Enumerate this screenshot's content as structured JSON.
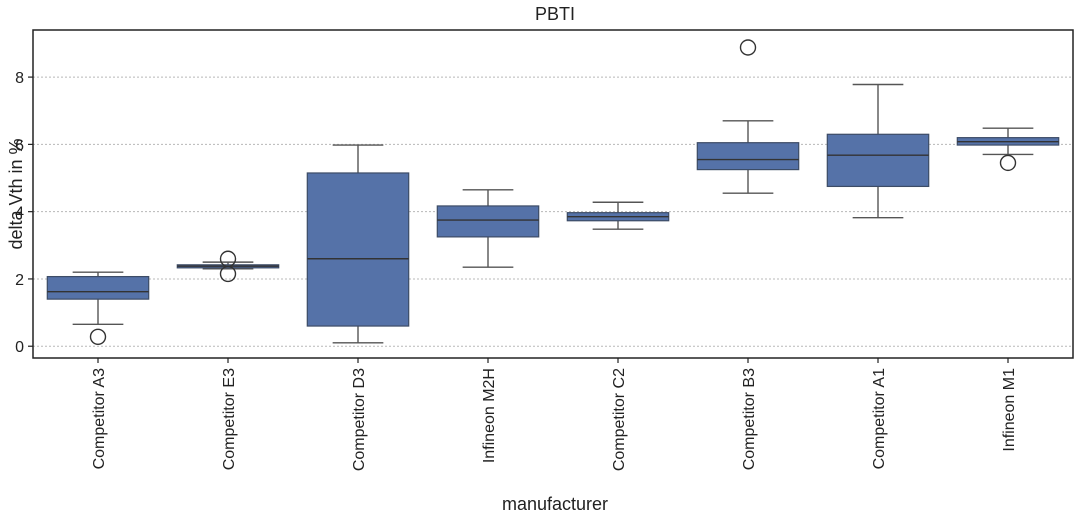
{
  "chart_data": {
    "type": "box",
    "title": "PBTI",
    "xlabel": "manufacturer",
    "ylabel": "delta Vth in %",
    "ylim": [
      -0.35,
      9.4
    ],
    "yticks": [
      0,
      2,
      4,
      6,
      8
    ],
    "grid": "horizontal-dotted",
    "box_color": "#5572a8",
    "categories": [
      "Competitor A3",
      "Competitor E3",
      "Competitor D3",
      "Infineon M2H",
      "Competitor C2",
      "Competitor B3",
      "Competitor A1",
      "Infineon M1"
    ],
    "boxes": [
      {
        "whislo": 0.65,
        "q1": 1.4,
        "med": 1.62,
        "q3": 2.07,
        "whishi": 2.2,
        "fliers": [
          0.28
        ]
      },
      {
        "whislo": 2.3,
        "q1": 2.33,
        "med": 2.38,
        "q3": 2.42,
        "whishi": 2.5,
        "fliers": [
          2.15,
          2.6
        ]
      },
      {
        "whislo": 0.1,
        "q1": 0.6,
        "med": 2.6,
        "q3": 5.15,
        "whishi": 5.98,
        "fliers": []
      },
      {
        "whislo": 2.35,
        "q1": 3.25,
        "med": 3.75,
        "q3": 4.17,
        "whishi": 4.65,
        "fliers": []
      },
      {
        "whislo": 3.48,
        "q1": 3.73,
        "med": 3.85,
        "q3": 3.97,
        "whishi": 4.28,
        "fliers": []
      },
      {
        "whislo": 4.55,
        "q1": 5.25,
        "med": 5.55,
        "q3": 6.05,
        "whishi": 6.7,
        "fliers": [
          8.88
        ]
      },
      {
        "whislo": 3.82,
        "q1": 4.75,
        "med": 5.68,
        "q3": 6.3,
        "whishi": 7.78,
        "fliers": []
      },
      {
        "whislo": 5.7,
        "q1": 5.98,
        "med": 6.08,
        "q3": 6.2,
        "whishi": 6.48,
        "fliers": [
          5.45
        ]
      }
    ]
  }
}
